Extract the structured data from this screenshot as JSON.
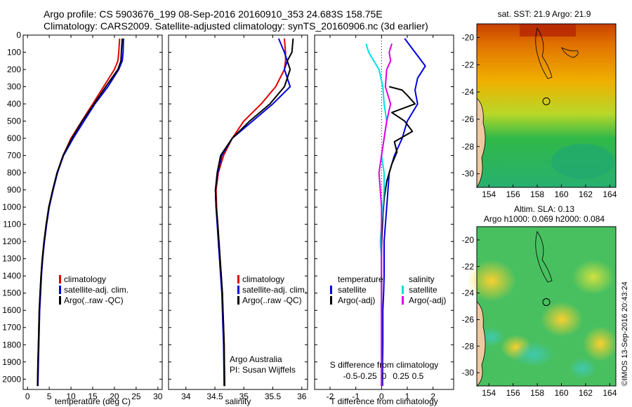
{
  "header": {
    "line1": "Argo profile: CS 5903676_199 08-Sep-2016 20160910_353 24.683S 158.75E",
    "line2": "Climatology: CARS2009. Satellite-adjusted climatology: synTS_20160906.nc (3d earlier)"
  },
  "credits": {
    "org": "Argo Australia",
    "pi": "PI: Susan Wijffels",
    "imos": "©IMOS 13-Sep-2016 20:43:24"
  },
  "colors": {
    "climatology": "#e00000",
    "satellite": "#0000e0",
    "argo": "#000000",
    "s_satellite": "#00e0e0",
    "s_argo": "#e000e0"
  },
  "chart_data": [
    {
      "type": "line",
      "id": "temperature",
      "xlabel": "temperature (deg C)",
      "ylabel": "",
      "xlim": [
        -1,
        31
      ],
      "ylim": [
        2060,
        0
      ],
      "x_ticks": [
        0,
        5,
        10,
        15,
        20,
        25,
        30
      ],
      "y_ticks": [
        0,
        100,
        200,
        300,
        400,
        500,
        600,
        700,
        800,
        900,
        1000,
        1100,
        1200,
        1300,
        1400,
        1500,
        1600,
        1700,
        1800,
        1900,
        2000
      ],
      "legend": [
        "climatology",
        "satellite-adj. clim.",
        "Argo(..raw -QC)"
      ],
      "series": [
        {
          "name": "climatology",
          "color": "#e00000",
          "x": [
            21.2,
            21.0,
            20.8,
            20.0,
            17.5,
            15.0,
            12.5,
            10.0,
            8.2,
            6.8,
            5.8,
            4.9,
            4.3,
            3.8,
            3.4,
            3.1,
            2.9,
            2.7,
            2.6,
            2.5,
            2.4,
            2.3
          ],
          "y": [
            20,
            100,
            150,
            200,
            300,
            400,
            500,
            600,
            700,
            800,
            900,
            1000,
            1100,
            1200,
            1300,
            1400,
            1500,
            1600,
            1700,
            1800,
            1900,
            2040
          ]
        },
        {
          "name": "satellite-adj. clim.",
          "color": "#0000e0",
          "x": [
            22.1,
            22.0,
            21.8,
            21.0,
            18.5,
            15.5,
            13.0,
            10.5,
            8.3,
            6.9,
            5.9,
            5.0,
            4.4,
            3.9,
            3.5,
            3.2,
            3.0,
            2.8,
            2.7,
            2.6,
            2.5,
            2.4
          ],
          "y": [
            20,
            100,
            150,
            200,
            300,
            400,
            500,
            600,
            700,
            800,
            900,
            1000,
            1100,
            1200,
            1300,
            1400,
            1500,
            1600,
            1700,
            1800,
            1900,
            2040
          ]
        },
        {
          "name": "Argo(..raw -QC)",
          "color": "#000000",
          "x": [
            21.8,
            21.6,
            21.5,
            20.8,
            18.0,
            15.3,
            12.6,
            10.2,
            8.2,
            6.8,
            5.8,
            4.9,
            4.3,
            3.8,
            3.4,
            3.1,
            2.9,
            2.7,
            2.6,
            2.5,
            2.4,
            2.3
          ],
          "y": [
            20,
            100,
            150,
            200,
            300,
            400,
            500,
            600,
            700,
            800,
            900,
            1000,
            1100,
            1200,
            1300,
            1400,
            1500,
            1600,
            1700,
            1800,
            1900,
            2040
          ]
        }
      ]
    },
    {
      "type": "line",
      "id": "salinity",
      "xlabel": "salinity",
      "ylabel": "",
      "xlim": [
        33.7,
        36.1
      ],
      "ylim": [
        2060,
        0
      ],
      "x_ticks": [
        34,
        34.5,
        35,
        35.5,
        36
      ],
      "legend": [
        "climatology",
        "satellite-adj. clim.",
        "Argo(..raw -QC)"
      ],
      "series": [
        {
          "name": "climatology",
          "color": "#e00000",
          "x": [
            35.7,
            35.72,
            35.72,
            35.7,
            35.55,
            35.3,
            35.0,
            34.8,
            34.65,
            34.56,
            34.52,
            34.53,
            34.55,
            34.57,
            34.59,
            34.61,
            34.63,
            34.64,
            34.65,
            34.66,
            34.66
          ],
          "y": [
            20,
            100,
            150,
            200,
            300,
            400,
            500,
            600,
            700,
            800,
            900,
            1000,
            1100,
            1200,
            1300,
            1400,
            1500,
            1600,
            1700,
            1800,
            2040
          ]
        },
        {
          "name": "satellite-adj. clim.",
          "color": "#0000e0",
          "x": [
            35.6,
            35.7,
            35.75,
            35.7,
            35.8,
            35.5,
            35.15,
            34.8,
            34.62,
            34.55,
            34.51,
            34.52,
            34.54,
            34.56,
            34.58,
            34.6,
            34.62,
            34.63,
            34.64,
            34.65,
            34.66
          ],
          "y": [
            20,
            100,
            150,
            200,
            300,
            400,
            500,
            600,
            700,
            800,
            900,
            1000,
            1100,
            1200,
            1300,
            1400,
            1500,
            1600,
            1700,
            1800,
            2040
          ]
        },
        {
          "name": "Argo(..raw -QC)",
          "color": "#000000",
          "x": [
            35.85,
            35.83,
            35.75,
            35.8,
            35.7,
            35.45,
            35.1,
            34.8,
            34.6,
            34.54,
            34.51,
            34.52,
            34.55,
            34.57,
            34.59,
            34.61,
            34.63,
            34.64,
            34.65,
            34.66,
            34.67
          ],
          "y": [
            20,
            100,
            150,
            200,
            300,
            400,
            500,
            600,
            700,
            800,
            900,
            1000,
            1100,
            1200,
            1300,
            1400,
            1500,
            1600,
            1700,
            1800,
            2040
          ]
        }
      ]
    },
    {
      "type": "line",
      "id": "difference",
      "xlabel": "T difference from climatology",
      "ylabel": "",
      "title_s": "S difference from climatology",
      "xlim": [
        -2.6,
        2.8
      ],
      "ylim": [
        2060,
        0
      ],
      "x_ticks_t": [
        -2,
        -1,
        0,
        1,
        2
      ],
      "x_ticks_s": [
        -0.5,
        -0.25,
        0,
        0.25,
        0.5
      ],
      "legend": {
        "temperature_header": "temperature",
        "salinity_header": "salinity",
        "satellite": "satellite",
        "argo": "Argo(-adj)"
      },
      "series": [
        {
          "name": "temperature satellite",
          "color": "#0000e0",
          "x": [
            0.9,
            1.2,
            1.4,
            1.7,
            1.4,
            1.3,
            1.4,
            1.0,
            0.8,
            0.5,
            0.3,
            0.25,
            0.2,
            0.15,
            0.1,
            0.1,
            0.08,
            0.05,
            0.05,
            0.04,
            0.04
          ],
          "y": [
            20,
            80,
            120,
            180,
            250,
            320,
            400,
            500,
            600,
            700,
            800,
            900,
            1000,
            1100,
            1200,
            1400,
            1500,
            1600,
            1800,
            1900,
            2040
          ]
        },
        {
          "name": "temperature Argo",
          "color": "#000000",
          "x": [
            0.3,
            0.8,
            1.0,
            1.3,
            0.4,
            0.9,
            1.2,
            0.5,
            0.6,
            0.4,
            0.2,
            0.1,
            0.05,
            0.02,
            0.0,
            0.0,
            0.0,
            0.0,
            0.0
          ],
          "y": [
            300,
            320,
            350,
            400,
            450,
            500,
            560,
            620,
            680,
            750,
            850,
            950,
            1050,
            1150,
            1250,
            1400,
            1600,
            1800,
            2040
          ]
        },
        {
          "name": "salinity satellite",
          "color": "#00e0e0",
          "x": [
            -0.6,
            -0.5,
            -0.3,
            -0.1,
            0.05,
            0.1,
            0.2,
            0.1,
            0.0,
            0.1,
            0.1,
            0.05,
            0.0,
            -0.05,
            0.0,
            0.0,
            0.0,
            0.0
          ],
          "y": [
            50,
            100,
            150,
            200,
            300,
            400,
            500,
            600,
            700,
            800,
            900,
            1000,
            1100,
            1200,
            1300,
            1500,
            1800,
            2040
          ]
        },
        {
          "name": "salinity Argo",
          "color": "#e000e0",
          "x": [
            0.4,
            0.3,
            0.35,
            0.2,
            0.15,
            0.35,
            0.2,
            0.1,
            0.0,
            -0.1,
            -0.05,
            0.0,
            0.0,
            0.0,
            0.0,
            0.0
          ],
          "y": [
            50,
            100,
            150,
            200,
            300,
            400,
            500,
            600,
            700,
            800,
            900,
            1000,
            1200,
            1500,
            1800,
            2040
          ]
        }
      ]
    },
    {
      "type": "heatmap",
      "id": "sst-map",
      "title": "sat. SST: 21.9 Argo: 21.9",
      "x_ticks": [
        154,
        156,
        158,
        160,
        162,
        164
      ],
      "y_ticks": [
        -20,
        -22,
        -24,
        -26,
        -28,
        -30
      ],
      "xlim": [
        153,
        164.5
      ],
      "ylim": [
        -31,
        -19
      ],
      "marker": {
        "lon": 158.75,
        "lat": -24.683
      }
    },
    {
      "type": "heatmap",
      "id": "sla-map",
      "title": "Altim. SLA: 0.13",
      "subtitle": "Argo h1000: 0.069 h2000: 0.084",
      "x_ticks": [
        154,
        156,
        158,
        160,
        162,
        164
      ],
      "y_ticks": [
        -20,
        -22,
        -24,
        -26,
        -28,
        -30
      ],
      "xlim": [
        153,
        164.5
      ],
      "ylim": [
        -31,
        -19
      ],
      "marker": {
        "lon": 158.75,
        "lat": -24.683
      }
    }
  ]
}
